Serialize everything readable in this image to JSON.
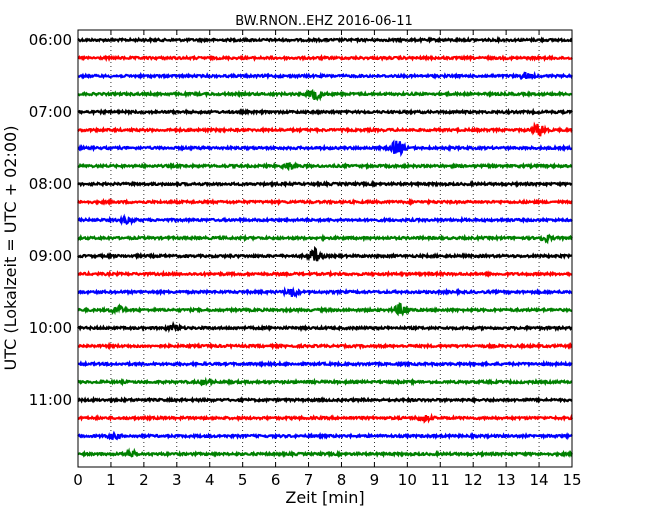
{
  "chart_data": {
    "type": "line",
    "title": "BW.RNON..EHZ 2016-06-11",
    "xlabel": "Zeit  [min]",
    "ylabel": "UTC (Lokalzeit = UTC + 02:00)",
    "xlim": [
      0,
      15
    ],
    "xticks": [
      "0",
      "1",
      "2",
      "3",
      "4",
      "5",
      "6",
      "7",
      "8",
      "9",
      "10",
      "11",
      "12",
      "13",
      "14",
      "15"
    ],
    "ytick_labels": [
      "06:00",
      "07:00",
      "08:00",
      "09:00",
      "10:00",
      "11:00"
    ],
    "grid": "vertical dotted at each minute",
    "trace_colors": [
      "#000000",
      "#ff0000",
      "#0000ff",
      "#008000"
    ],
    "traces": [
      {
        "start": "06:00",
        "events": []
      },
      {
        "start": "06:15",
        "events": []
      },
      {
        "start": "06:30",
        "events": [
          {
            "x": 13.6,
            "amp": 0.3
          }
        ]
      },
      {
        "start": "06:45",
        "events": [
          {
            "x": 7.2,
            "amp": 0.55
          }
        ]
      },
      {
        "start": "07:00",
        "events": []
      },
      {
        "start": "07:15",
        "events": [
          {
            "x": 14.0,
            "amp": 0.7
          }
        ]
      },
      {
        "start": "07:30",
        "events": [
          {
            "x": 9.7,
            "amp": 0.8
          }
        ]
      },
      {
        "start": "07:45",
        "events": [
          {
            "x": 6.4,
            "amp": 0.3
          }
        ]
      },
      {
        "start": "08:00",
        "events": []
      },
      {
        "start": "08:15",
        "events": []
      },
      {
        "start": "08:30",
        "events": [
          {
            "x": 1.5,
            "amp": 0.3
          }
        ]
      },
      {
        "start": "08:45",
        "events": [
          {
            "x": 14.2,
            "amp": 0.3
          }
        ]
      },
      {
        "start": "09:00",
        "events": [
          {
            "x": 7.2,
            "amp": 0.75
          }
        ]
      },
      {
        "start": "09:15",
        "events": []
      },
      {
        "start": "09:30",
        "events": [
          {
            "x": 6.5,
            "amp": 0.45
          }
        ]
      },
      {
        "start": "09:45",
        "events": [
          {
            "x": 1.2,
            "amp": 0.4
          },
          {
            "x": 9.8,
            "amp": 0.6
          }
        ]
      },
      {
        "start": "10:00",
        "events": [
          {
            "x": 2.9,
            "amp": 0.3
          }
        ]
      },
      {
        "start": "10:15",
        "events": []
      },
      {
        "start": "10:30",
        "events": []
      },
      {
        "start": "10:45",
        "events": [
          {
            "x": 3.9,
            "amp": 0.25
          }
        ]
      },
      {
        "start": "11:00",
        "events": []
      },
      {
        "start": "11:15",
        "events": [
          {
            "x": 10.5,
            "amp": 0.35
          }
        ]
      },
      {
        "start": "11:30",
        "events": [
          {
            "x": 1.1,
            "amp": 0.25
          }
        ]
      },
      {
        "start": "11:45",
        "events": [
          {
            "x": 1.6,
            "amp": 0.3
          }
        ]
      }
    ]
  }
}
